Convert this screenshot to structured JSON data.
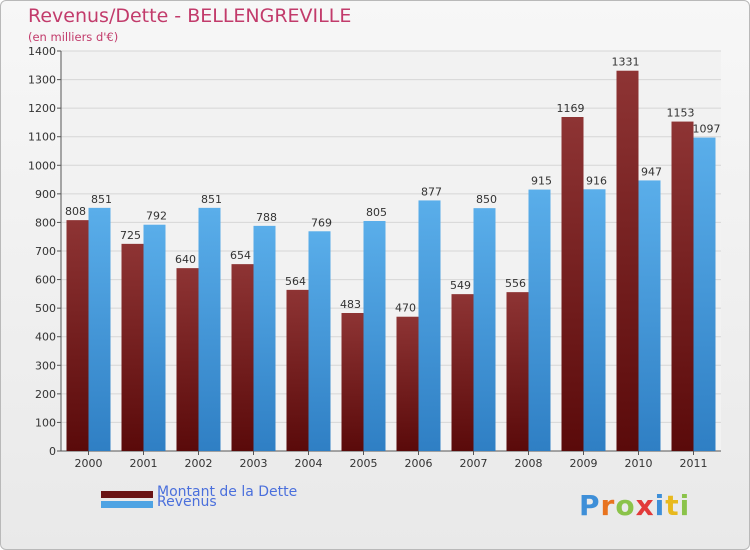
{
  "chart_data": {
    "type": "bar",
    "title": "Revenus/Dette - BELLENGREVILLE",
    "subtitle": "(en milliers d'€)",
    "categories": [
      "2000",
      "2001",
      "2002",
      "2003",
      "2004",
      "2005",
      "2006",
      "2007",
      "2008",
      "2009",
      "2010",
      "2011"
    ],
    "series": [
      {
        "name": "Montant de la Dette",
        "color": "#7a1e1e",
        "values": [
          808,
          725,
          640,
          654,
          564,
          483,
          470,
          549,
          556,
          1169,
          1331,
          1153
        ]
      },
      {
        "name": "Revenus",
        "color": "#4ea3e3",
        "values": [
          851,
          792,
          851,
          788,
          769,
          805,
          877,
          850,
          915,
          916,
          947,
          1097
        ]
      }
    ],
    "ylim": [
      0,
      1400
    ],
    "yticks": [
      0,
      100,
      200,
      300,
      400,
      500,
      600,
      700,
      800,
      900,
      1000,
      1100,
      1200,
      1300,
      1400
    ],
    "grid": true,
    "legend": "bottom-left"
  },
  "logo": {
    "text": "Proxiti"
  }
}
